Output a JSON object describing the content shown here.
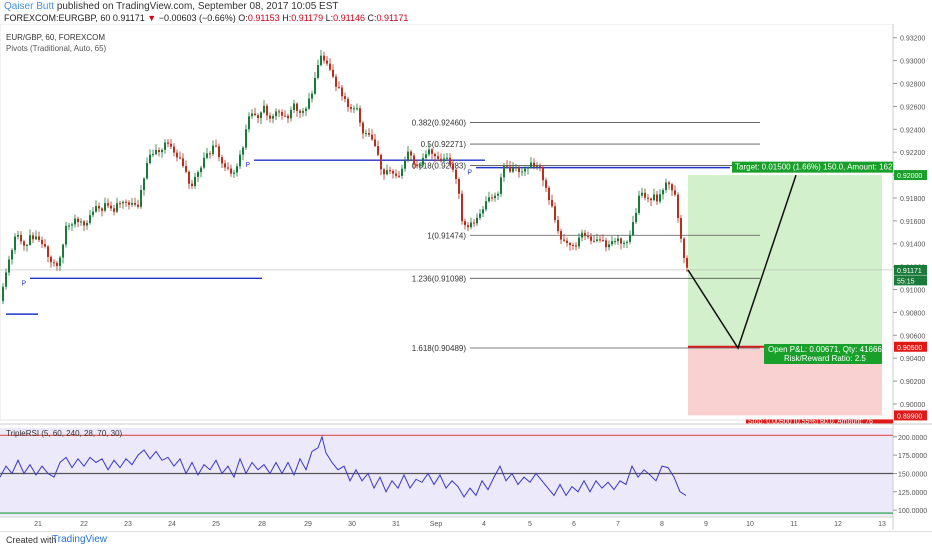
{
  "header": {
    "user": "Qaiser Butt",
    "published": "published on TradingView.com, September 08, 2017 10:05 EST",
    "symbol": "FOREXCOM:EURGBP, 60",
    "last": "0.91171",
    "change_arrow": "▼",
    "change": "−0.00603 (−0.66%)",
    "o_label": "O:",
    "o": "0.91153",
    "h_label": "H:",
    "h": "0.91179",
    "l_label": "L:",
    "l": "0.91146",
    "c_label": "C:",
    "c": "0.91171"
  },
  "legend": {
    "line1": "EUR/GBP, 60, FOREXCOM",
    "line2": "Pivots (Traditional, Auto, 65)"
  },
  "footer": {
    "created": "Created with",
    "logo_text": "TradingView"
  },
  "colors": {
    "up": "#1a7a3a",
    "down": "#b7301e",
    "pivot": "#2333c8",
    "rsi_line": "#3b37c6",
    "rsi_bg": "#ece9fb",
    "target_zone": "#d2f0cc",
    "stop_zone": "#f9d1d1",
    "target_badge": "#18a02a",
    "stop_badge": "#e01818"
  },
  "chart_data": [
    {
      "type": "candlestick",
      "name": "EUR/GBP, 60, FOREXCOM",
      "ylim": [
        0.8986,
        0.9332
      ],
      "y_ticks": [
        "0.93200",
        "0.93000",
        "0.92800",
        "0.92600",
        "0.92400",
        "0.92200",
        "0.92000",
        "0.91800",
        "0.91600",
        "0.91400",
        "0.91200",
        "0.91000",
        "0.90800",
        "0.90600",
        "0.90400",
        "0.90200",
        "0.90000"
      ],
      "x_ticks": [
        "21",
        "22",
        "23",
        "24",
        "25",
        "28",
        "29",
        "30",
        "31",
        "Sep",
        "4",
        "5",
        "6",
        "7",
        "8",
        "9",
        "10",
        "11",
        "12",
        "13"
      ],
      "close_path": [
        [
          0,
          0.909
        ],
        [
          5,
          0.911
        ],
        [
          10,
          0.913
        ],
        [
          16,
          0.915
        ],
        [
          22,
          0.914
        ],
        [
          32,
          0.9145
        ],
        [
          42,
          0.914
        ],
        [
          52,
          0.9125
        ],
        [
          58,
          0.9122
        ],
        [
          66,
          0.9155
        ],
        [
          76,
          0.9162
        ],
        [
          86,
          0.9158
        ],
        [
          96,
          0.917
        ],
        [
          106,
          0.9173
        ],
        [
          114,
          0.9168
        ],
        [
          122,
          0.918
        ],
        [
          130,
          0.9175
        ],
        [
          138,
          0.917
        ],
        [
          144,
          0.92
        ],
        [
          150,
          0.9215
        ],
        [
          158,
          0.922
        ],
        [
          166,
          0.923
        ],
        [
          172,
          0.9222
        ],
        [
          178,
          0.9215
        ],
        [
          186,
          0.92
        ],
        [
          192,
          0.919
        ],
        [
          198,
          0.9205
        ],
        [
          206,
          0.9215
        ],
        [
          214,
          0.9225
        ],
        [
          220,
          0.9215
        ],
        [
          226,
          0.9205
        ],
        [
          232,
          0.92
        ],
        [
          238,
          0.921
        ],
        [
          244,
          0.923
        ],
        [
          250,
          0.9255
        ],
        [
          256,
          0.9248
        ],
        [
          262,
          0.926
        ],
        [
          270,
          0.925
        ],
        [
          278,
          0.9258
        ],
        [
          286,
          0.9248
        ],
        [
          294,
          0.9262
        ],
        [
          302,
          0.9255
        ],
        [
          310,
          0.9265
        ],
        [
          316,
          0.9285
        ],
        [
          320,
          0.9302
        ],
        [
          326,
          0.9298
        ],
        [
          332,
          0.9285
        ],
        [
          338,
          0.9275
        ],
        [
          344,
          0.9268
        ],
        [
          350,
          0.9258
        ],
        [
          356,
          0.926
        ],
        [
          362,
          0.924
        ],
        [
          368,
          0.9235
        ],
        [
          374,
          0.9225
        ],
        [
          380,
          0.921
        ],
        [
          386,
          0.92
        ],
        [
          392,
          0.9205
        ],
        [
          398,
          0.9195
        ],
        [
          404,
          0.921
        ],
        [
          410,
          0.9222
        ],
        [
          416,
          0.9205
        ],
        [
          422,
          0.9212
        ],
        [
          428,
          0.922
        ],
        [
          434,
          0.9222
        ],
        [
          440,
          0.9208
        ],
        [
          446,
          0.9215
        ],
        [
          452,
          0.9205
        ],
        [
          458,
          0.9195
        ],
        [
          462,
          0.916
        ],
        [
          468,
          0.9155
        ],
        [
          474,
          0.9158
        ],
        [
          480,
          0.9165
        ],
        [
          486,
          0.9175
        ],
        [
          492,
          0.918
        ],
        [
          498,
          0.9185
        ],
        [
          504,
          0.921
        ],
        [
          510,
          0.92
        ],
        [
          516,
          0.9207
        ],
        [
          522,
          0.9204
        ],
        [
          528,
          0.921
        ],
        [
          534,
          0.9206
        ],
        [
          540,
          0.9208
        ],
        [
          546,
          0.919
        ],
        [
          552,
          0.917
        ],
        [
          558,
          0.915
        ],
        [
          564,
          0.914
        ],
        [
          570,
          0.9142
        ],
        [
          576,
          0.9138
        ],
        [
          582,
          0.915
        ],
        [
          588,
          0.9145
        ],
        [
          594,
          0.914
        ],
        [
          600,
          0.9142
        ],
        [
          606,
          0.9138
        ],
        [
          612,
          0.914
        ],
        [
          618,
          0.9145
        ],
        [
          624,
          0.9142
        ],
        [
          630,
          0.9146
        ],
        [
          636,
          0.9165
        ],
        [
          640,
          0.9185
        ],
        [
          646,
          0.9178
        ],
        [
          652,
          0.9182
        ],
        [
          658,
          0.9176
        ],
        [
          664,
          0.9192
        ],
        [
          670,
          0.9195
        ],
        [
          676,
          0.9178
        ],
        [
          680,
          0.915
        ],
        [
          684,
          0.913
        ],
        [
          688,
          0.9117
        ]
      ],
      "pivots": [
        {
          "label": "P",
          "from": 30,
          "to": 262,
          "y": 0.91098
        },
        {
          "label": "P",
          "from": 254,
          "to": 485,
          "y": 0.9213
        },
        {
          "label": "P",
          "from": 476,
          "to": 730,
          "y": 0.92065
        },
        {
          "label": "",
          "from": 6,
          "to": 38,
          "y": 0.90785
        }
      ],
      "fibonacci": [
        {
          "label": "0.382(0.92460)",
          "y": 0.9246
        },
        {
          "label": "0.5(0.92271)",
          "y": 0.92271
        },
        {
          "label": "0.618(0.92083)",
          "y": 0.92083
        },
        {
          "label": "1(0.91474)",
          "y": 0.91474
        },
        {
          "label": "1.236(0.91098)",
          "y": 0.91098
        },
        {
          "label": "1.618(0.90489)",
          "y": 0.90489
        }
      ],
      "position": {
        "entry": 0.91171,
        "target": 0.92,
        "stop": 0.899,
        "target_label": "Target: 0.01500 (1.66%) 150.0, Amount: 162",
        "stop_label": "Stop: 0.00500 (0.55%) 60.0, Amount: 76",
        "pnl_line1": "Open P&L: 0.00671, Qty: 41666",
        "pnl_line2": "Risk/Reward Ratio: 2.5"
      },
      "projection": [
        [
          688,
          0.91171
        ],
        [
          738,
          0.90489
        ],
        [
          796,
          0.92
        ]
      ],
      "price_tags": [
        {
          "text": "0.92000",
          "y": 0.92,
          "color": "#18a02a"
        },
        {
          "text": "0.91171",
          "y": 0.91171,
          "color": "#1a7a3a"
        },
        {
          "text": "55:15",
          "y": 0.9108,
          "color": "#1a7a3a"
        },
        {
          "text": "0.90500",
          "y": 0.905,
          "color": "#e01818"
        },
        {
          "text": "0.89900",
          "y": 0.899,
          "color": "#e01818"
        }
      ]
    },
    {
      "type": "line",
      "name": "TripleRSI (5, 60, 240, 28, 70, 30)",
      "ylim": [
        92,
        212
      ],
      "y_ticks": [
        "200.0000",
        "175.0000",
        "150.0000",
        "125.0000",
        "100.0000"
      ],
      "bands": [
        202,
        150,
        96
      ],
      "values": [
        [
          0,
          145
        ],
        [
          6,
          160
        ],
        [
          12,
          150
        ],
        [
          18,
          168
        ],
        [
          24,
          150
        ],
        [
          30,
          162
        ],
        [
          36,
          148
        ],
        [
          42,
          160
        ],
        [
          48,
          150
        ],
        [
          54,
          145
        ],
        [
          60,
          165
        ],
        [
          66,
          172
        ],
        [
          72,
          158
        ],
        [
          78,
          170
        ],
        [
          84,
          160
        ],
        [
          90,
          172
        ],
        [
          96,
          165
        ],
        [
          102,
          170
        ],
        [
          108,
          155
        ],
        [
          114,
          168
        ],
        [
          120,
          158
        ],
        [
          126,
          170
        ],
        [
          132,
          162
        ],
        [
          138,
          175
        ],
        [
          144,
          182
        ],
        [
          150,
          170
        ],
        [
          156,
          180
        ],
        [
          162,
          168
        ],
        [
          168,
          172
        ],
        [
          174,
          160
        ],
        [
          180,
          170
        ],
        [
          186,
          150
        ],
        [
          192,
          165
        ],
        [
          198,
          148
        ],
        [
          204,
          162
        ],
        [
          210,
          155
        ],
        [
          216,
          168
        ],
        [
          222,
          150
        ],
        [
          228,
          160
        ],
        [
          234,
          145
        ],
        [
          240,
          170
        ],
        [
          246,
          150
        ],
        [
          252,
          165
        ],
        [
          258,
          155
        ],
        [
          264,
          162
        ],
        [
          270,
          150
        ],
        [
          276,
          165
        ],
        [
          282,
          150
        ],
        [
          288,
          165
        ],
        [
          294,
          148
        ],
        [
          300,
          170
        ],
        [
          306,
          155
        ],
        [
          312,
          180
        ],
        [
          318,
          185
        ],
        [
          322,
          200
        ],
        [
          326,
          178
        ],
        [
          332,
          165
        ],
        [
          338,
          155
        ],
        [
          344,
          160
        ],
        [
          350,
          140
        ],
        [
          356,
          155
        ],
        [
          362,
          140
        ],
        [
          368,
          150
        ],
        [
          374,
          130
        ],
        [
          380,
          145
        ],
        [
          386,
          125
        ],
        [
          392,
          140
        ],
        [
          398,
          130
        ],
        [
          404,
          148
        ],
        [
          410,
          130
        ],
        [
          416,
          142
        ],
        [
          422,
          138
        ],
        [
          428,
          150
        ],
        [
          434,
          135
        ],
        [
          440,
          148
        ],
        [
          446,
          130
        ],
        [
          452,
          140
        ],
        [
          458,
          132
        ],
        [
          464,
          118
        ],
        [
          470,
          130
        ],
        [
          476,
          120
        ],
        [
          482,
          140
        ],
        [
          488,
          128
        ],
        [
          494,
          145
        ],
        [
          500,
          160
        ],
        [
          506,
          140
        ],
        [
          512,
          150
        ],
        [
          518,
          135
        ],
        [
          524,
          145
        ],
        [
          530,
          138
        ],
        [
          536,
          150
        ],
        [
          542,
          140
        ],
        [
          548,
          130
        ],
        [
          554,
          120
        ],
        [
          560,
          135
        ],
        [
          566,
          120
        ],
        [
          572,
          132
        ],
        [
          578,
          125
        ],
        [
          584,
          140
        ],
        [
          590,
          125
        ],
        [
          596,
          140
        ],
        [
          602,
          130
        ],
        [
          608,
          138
        ],
        [
          614,
          128
        ],
        [
          620,
          140
        ],
        [
          626,
          135
        ],
        [
          632,
          160
        ],
        [
          638,
          145
        ],
        [
          644,
          155
        ],
        [
          650,
          148
        ],
        [
          656,
          140
        ],
        [
          662,
          160
        ],
        [
          668,
          158
        ],
        [
          674,
          145
        ],
        [
          680,
          125
        ],
        [
          686,
          120
        ]
      ]
    }
  ]
}
